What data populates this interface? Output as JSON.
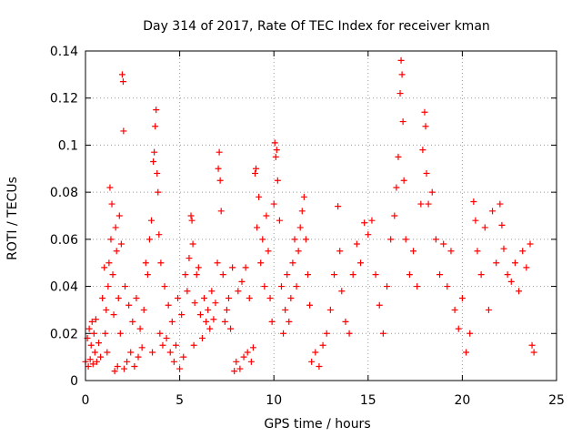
{
  "chart_data": {
    "type": "scatter",
    "title": "Day 314 of 2017, Rate Of TEC Index for receiver kman",
    "xlabel": "GPS time / hours",
    "ylabel": "ROTI / TECUs",
    "xlim": [
      0,
      25
    ],
    "ylim": [
      0,
      0.14
    ],
    "x_ticks": [
      "0",
      "5",
      "10",
      "15",
      "20",
      "25"
    ],
    "y_ticks": [
      "0",
      "0.02",
      "0.04",
      "0.06",
      "0.08",
      "0.1",
      "0.12",
      "0.14"
    ],
    "grid": true,
    "marker": "+",
    "marker_color": "#ff0000",
    "series": [
      {
        "points": [
          [
            0.0,
            0.008
          ],
          [
            0.1,
            0.018
          ],
          [
            0.15,
            0.006
          ],
          [
            0.2,
            0.022
          ],
          [
            0.25,
            0.009
          ],
          [
            0.3,
            0.015
          ],
          [
            0.35,
            0.025
          ],
          [
            0.4,
            0.007
          ],
          [
            0.45,
            0.02
          ],
          [
            0.5,
            0.012
          ],
          [
            0.55,
            0.026
          ],
          [
            0.6,
            0.008
          ],
          [
            0.7,
            0.016
          ],
          [
            0.8,
            0.01
          ],
          [
            0.9,
            0.035
          ],
          [
            1.0,
            0.048
          ],
          [
            1.05,
            0.02
          ],
          [
            1.1,
            0.03
          ],
          [
            1.15,
            0.012
          ],
          [
            1.2,
            0.04
          ],
          [
            1.25,
            0.05
          ],
          [
            1.3,
            0.082
          ],
          [
            1.35,
            0.06
          ],
          [
            1.4,
            0.075
          ],
          [
            1.45,
            0.045
          ],
          [
            1.5,
            0.028
          ],
          [
            1.55,
            0.004
          ],
          [
            1.6,
            0.065
          ],
          [
            1.65,
            0.055
          ],
          [
            1.7,
            0.006
          ],
          [
            1.75,
            0.035
          ],
          [
            1.8,
            0.07
          ],
          [
            1.85,
            0.02
          ],
          [
            1.9,
            0.058
          ],
          [
            1.95,
            0.13
          ],
          [
            2.0,
            0.127
          ],
          [
            2.02,
            0.106
          ],
          [
            2.05,
            0.005
          ],
          [
            2.1,
            0.04
          ],
          [
            2.2,
            0.008
          ],
          [
            2.3,
            0.032
          ],
          [
            2.4,
            0.012
          ],
          [
            2.5,
            0.025
          ],
          [
            2.6,
            0.006
          ],
          [
            2.7,
            0.035
          ],
          [
            2.8,
            0.01
          ],
          [
            2.9,
            0.022
          ],
          [
            3.0,
            0.014
          ],
          [
            3.1,
            0.03
          ],
          [
            3.2,
            0.05
          ],
          [
            3.3,
            0.045
          ],
          [
            3.4,
            0.06
          ],
          [
            3.5,
            0.068
          ],
          [
            3.55,
            0.012
          ],
          [
            3.6,
            0.093
          ],
          [
            3.65,
            0.097
          ],
          [
            3.7,
            0.108
          ],
          [
            3.75,
            0.115
          ],
          [
            3.8,
            0.088
          ],
          [
            3.85,
            0.08
          ],
          [
            3.9,
            0.062
          ],
          [
            3.95,
            0.02
          ],
          [
            4.0,
            0.05
          ],
          [
            4.1,
            0.015
          ],
          [
            4.2,
            0.04
          ],
          [
            4.3,
            0.018
          ],
          [
            4.4,
            0.032
          ],
          [
            4.5,
            0.012
          ],
          [
            4.6,
            0.025
          ],
          [
            4.7,
            0.008
          ],
          [
            4.8,
            0.015
          ],
          [
            4.9,
            0.035
          ],
          [
            5.0,
            0.005
          ],
          [
            5.1,
            0.028
          ],
          [
            5.2,
            0.01
          ],
          [
            5.3,
            0.045
          ],
          [
            5.4,
            0.038
          ],
          [
            5.5,
            0.052
          ],
          [
            5.6,
            0.07
          ],
          [
            5.65,
            0.068
          ],
          [
            5.7,
            0.058
          ],
          [
            5.75,
            0.015
          ],
          [
            5.8,
            0.033
          ],
          [
            5.9,
            0.045
          ],
          [
            6.0,
            0.048
          ],
          [
            6.1,
            0.028
          ],
          [
            6.2,
            0.018
          ],
          [
            6.3,
            0.035
          ],
          [
            6.4,
            0.025
          ],
          [
            6.5,
            0.03
          ],
          [
            6.6,
            0.022
          ],
          [
            6.7,
            0.038
          ],
          [
            6.8,
            0.026
          ],
          [
            6.9,
            0.033
          ],
          [
            7.0,
            0.05
          ],
          [
            7.05,
            0.09
          ],
          [
            7.1,
            0.097
          ],
          [
            7.15,
            0.085
          ],
          [
            7.2,
            0.072
          ],
          [
            7.3,
            0.045
          ],
          [
            7.4,
            0.025
          ],
          [
            7.5,
            0.03
          ],
          [
            7.6,
            0.035
          ],
          [
            7.7,
            0.022
          ],
          [
            7.8,
            0.048
          ],
          [
            7.9,
            0.004
          ],
          [
            8.0,
            0.008
          ],
          [
            8.1,
            0.038
          ],
          [
            8.2,
            0.005
          ],
          [
            8.3,
            0.042
          ],
          [
            8.4,
            0.01
          ],
          [
            8.5,
            0.048
          ],
          [
            8.6,
            0.012
          ],
          [
            8.7,
            0.035
          ],
          [
            8.8,
            0.008
          ],
          [
            8.9,
            0.014
          ],
          [
            9.0,
            0.088
          ],
          [
            9.05,
            0.09
          ],
          [
            9.1,
            0.065
          ],
          [
            9.2,
            0.078
          ],
          [
            9.3,
            0.05
          ],
          [
            9.4,
            0.06
          ],
          [
            9.5,
            0.04
          ],
          [
            9.6,
            0.07
          ],
          [
            9.7,
            0.055
          ],
          [
            9.8,
            0.035
          ],
          [
            9.9,
            0.025
          ],
          [
            10.0,
            0.075
          ],
          [
            10.05,
            0.101
          ],
          [
            10.1,
            0.095
          ],
          [
            10.15,
            0.098
          ],
          [
            10.2,
            0.085
          ],
          [
            10.3,
            0.068
          ],
          [
            10.4,
            0.04
          ],
          [
            10.5,
            0.02
          ],
          [
            10.6,
            0.03
          ],
          [
            10.7,
            0.045
          ],
          [
            10.8,
            0.025
          ],
          [
            10.9,
            0.035
          ],
          [
            11.0,
            0.05
          ],
          [
            11.1,
            0.06
          ],
          [
            11.2,
            0.04
          ],
          [
            11.3,
            0.055
          ],
          [
            11.4,
            0.065
          ],
          [
            11.5,
            0.072
          ],
          [
            11.6,
            0.078
          ],
          [
            11.7,
            0.06
          ],
          [
            11.8,
            0.045
          ],
          [
            11.9,
            0.032
          ],
          [
            12.0,
            0.008
          ],
          [
            12.2,
            0.012
          ],
          [
            12.4,
            0.006
          ],
          [
            12.6,
            0.015
          ],
          [
            12.8,
            0.02
          ],
          [
            13.0,
            0.03
          ],
          [
            13.2,
            0.045
          ],
          [
            13.4,
            0.074
          ],
          [
            13.5,
            0.055
          ],
          [
            13.6,
            0.038
          ],
          [
            13.8,
            0.025
          ],
          [
            14.0,
            0.02
          ],
          [
            14.2,
            0.045
          ],
          [
            14.4,
            0.058
          ],
          [
            14.6,
            0.05
          ],
          [
            14.8,
            0.067
          ],
          [
            15.0,
            0.062
          ],
          [
            15.2,
            0.068
          ],
          [
            15.4,
            0.045
          ],
          [
            15.6,
            0.032
          ],
          [
            15.8,
            0.02
          ],
          [
            16.0,
            0.04
          ],
          [
            16.2,
            0.06
          ],
          [
            16.4,
            0.07
          ],
          [
            16.5,
            0.082
          ],
          [
            16.6,
            0.095
          ],
          [
            16.7,
            0.122
          ],
          [
            16.75,
            0.136
          ],
          [
            16.8,
            0.13
          ],
          [
            16.85,
            0.11
          ],
          [
            16.9,
            0.085
          ],
          [
            17.0,
            0.06
          ],
          [
            17.2,
            0.045
          ],
          [
            17.4,
            0.055
          ],
          [
            17.6,
            0.04
          ],
          [
            17.8,
            0.075
          ],
          [
            17.9,
            0.098
          ],
          [
            18.0,
            0.114
          ],
          [
            18.05,
            0.108
          ],
          [
            18.1,
            0.088
          ],
          [
            18.2,
            0.075
          ],
          [
            18.4,
            0.08
          ],
          [
            18.6,
            0.06
          ],
          [
            18.8,
            0.045
          ],
          [
            19.0,
            0.058
          ],
          [
            19.2,
            0.04
          ],
          [
            19.4,
            0.055
          ],
          [
            19.6,
            0.03
          ],
          [
            19.8,
            0.022
          ],
          [
            20.0,
            0.035
          ],
          [
            20.2,
            0.012
          ],
          [
            20.4,
            0.02
          ],
          [
            20.6,
            0.076
          ],
          [
            20.7,
            0.068
          ],
          [
            20.8,
            0.055
          ],
          [
            21.0,
            0.045
          ],
          [
            21.2,
            0.065
          ],
          [
            21.4,
            0.03
          ],
          [
            21.6,
            0.072
          ],
          [
            21.8,
            0.05
          ],
          [
            22.0,
            0.075
          ],
          [
            22.1,
            0.066
          ],
          [
            22.2,
            0.056
          ],
          [
            22.4,
            0.045
          ],
          [
            22.6,
            0.042
          ],
          [
            22.8,
            0.05
          ],
          [
            23.0,
            0.038
          ],
          [
            23.2,
            0.055
          ],
          [
            23.4,
            0.048
          ],
          [
            23.6,
            0.058
          ],
          [
            23.7,
            0.015
          ],
          [
            23.8,
            0.012
          ]
        ]
      }
    ]
  }
}
